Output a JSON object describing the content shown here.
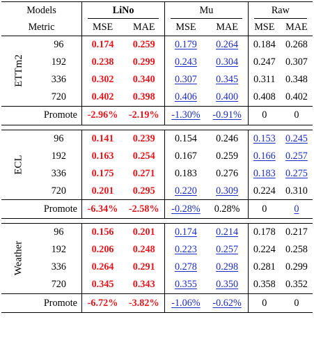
{
  "header": {
    "models_label": "Models",
    "metric_label": "Metric",
    "groups": [
      "LiNo",
      "Mu",
      "Raw"
    ],
    "metrics": [
      "MSE",
      "MAE",
      "MSE",
      "MAE",
      "MSE",
      "MAE"
    ]
  },
  "sections": [
    {
      "dataset": "ETTm2",
      "rows": [
        {
          "h": "96",
          "v": [
            "0.174",
            "0.259",
            "0.179",
            "0.264",
            "0.184",
            "0.268"
          ]
        },
        {
          "h": "192",
          "v": [
            "0.238",
            "0.299",
            "0.243",
            "0.304",
            "0.247",
            "0.307"
          ]
        },
        {
          "h": "336",
          "v": [
            "0.302",
            "0.340",
            "0.307",
            "0.345",
            "0.311",
            "0.348"
          ]
        },
        {
          "h": "720",
          "v": [
            "0.402",
            "0.398",
            "0.406",
            "0.400",
            "0.408",
            "0.402"
          ]
        }
      ],
      "promote_label": "Promote",
      "promote": [
        "-2.96%",
        "-2.19%",
        "-1.30%",
        "-0.91%",
        "0",
        "0"
      ]
    },
    {
      "dataset": "ECL",
      "rows": [
        {
          "h": "96",
          "v": [
            "0.141",
            "0.239",
            "0.154",
            "0.246",
            "0.153",
            "0.245"
          ]
        },
        {
          "h": "192",
          "v": [
            "0.163",
            "0.254",
            "0.167",
            "0.259",
            "0.166",
            "0.257"
          ]
        },
        {
          "h": "336",
          "v": [
            "0.175",
            "0.271",
            "0.183",
            "0.276",
            "0.183",
            "0.275"
          ]
        },
        {
          "h": "720",
          "v": [
            "0.201",
            "0.295",
            "0.220",
            "0.309",
            "0.224",
            "0.310"
          ]
        }
      ],
      "promote_label": "Promote",
      "promote": [
        "-6.34%",
        "-2.58%",
        "-0.28%",
        "0.28%",
        "0",
        "0"
      ]
    },
    {
      "dataset": "Weather",
      "rows": [
        {
          "h": "96",
          "v": [
            "0.156",
            "0.201",
            "0.174",
            "0.214",
            "0.178",
            "0.217"
          ]
        },
        {
          "h": "192",
          "v": [
            "0.206",
            "0.248",
            "0.223",
            "0.257",
            "0.224",
            "0.258"
          ]
        },
        {
          "h": "336",
          "v": [
            "0.264",
            "0.291",
            "0.278",
            "0.298",
            "0.281",
            "0.299"
          ]
        },
        {
          "h": "720",
          "v": [
            "0.345",
            "0.343",
            "0.355",
            "0.350",
            "0.358",
            "0.352"
          ]
        }
      ],
      "promote_label": "Promote",
      "promote": [
        "-6.72%",
        "-3.82%",
        "-1.06%",
        "-0.62%",
        "0",
        "0"
      ]
    }
  ],
  "styles": {
    "best_color": "#e8161b",
    "second_color": "#1a2bc8"
  }
}
